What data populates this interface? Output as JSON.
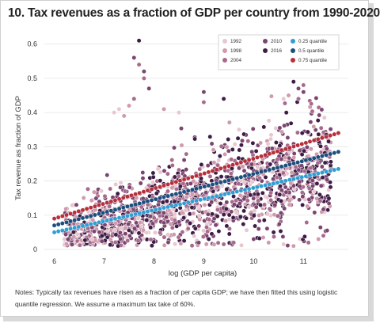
{
  "title": "10. Tax revenues as a fraction of GDP per country from 1990-2020",
  "notes": "Notes: Typically tax revenues have risen as a fraction of per capita GDP; we have then fitted this using logistic quantile regression. We assume a maximum tax take of 60%.",
  "chart_data": {
    "type": "scatter",
    "xlabel": "log (GDP per capita)",
    "ylabel": "Tax revenue as fraction of GDP",
    "xlim": [
      5.8,
      11.9
    ],
    "ylim": [
      0,
      0.62
    ],
    "x_ticks": [
      6,
      7,
      8,
      9,
      10,
      11
    ],
    "y_ticks": [
      0,
      0.1,
      0.2,
      0.3,
      0.4,
      0.5,
      0.6
    ],
    "grid": "horizontal",
    "legend_position": "top-right",
    "series": [
      {
        "name": "1992",
        "color": "#e8c7cf"
      },
      {
        "name": "1998",
        "color": "#cf9aac"
      },
      {
        "name": "2004",
        "color": "#a86a8c"
      },
      {
        "name": "2010",
        "color": "#7b4570"
      },
      {
        "name": "2016",
        "color": "#3d1c45"
      }
    ],
    "quantiles": [
      {
        "name": "0.25 quantile",
        "color": "#2e9ed4",
        "x": [
          6,
          11.7
        ],
        "y": [
          0.05,
          0.235
        ]
      },
      {
        "name": "0.5 quantile",
        "color": "#1b4f7d",
        "x": [
          6,
          11.7
        ],
        "y": [
          0.07,
          0.285
        ]
      },
      {
        "name": "0.75 quantile",
        "color": "#b5303c",
        "x": [
          6,
          11.7
        ],
        "y": [
          0.09,
          0.34
        ]
      }
    ]
  }
}
